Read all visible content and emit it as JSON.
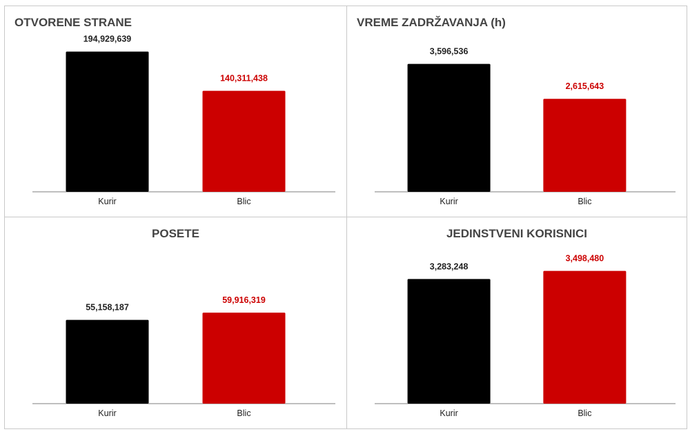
{
  "colors": {
    "kurir": "#000000",
    "blic": "#cc0000"
  },
  "chart_data": [
    {
      "type": "bar",
      "title": "OTVORENE STRANE",
      "categories": [
        "Kurir",
        "Blic"
      ],
      "values": [
        194929639,
        140311438
      ],
      "value_labels": [
        "194,929,639",
        "140,311,438"
      ],
      "bar_colors": [
        "#000000",
        "#cc0000"
      ],
      "ylim": [
        0,
        210000000
      ],
      "title_align": "left",
      "grid": false,
      "legend": "none"
    },
    {
      "type": "bar",
      "title": "VREME ZADRŽAVANJA (h)",
      "categories": [
        "Kurir",
        "Blic"
      ],
      "values": [
        3596536,
        2615643
      ],
      "value_labels": [
        "3,596,536",
        "2,615,643"
      ],
      "bar_colors": [
        "#000000",
        "#cc0000"
      ],
      "ylim": [
        0,
        4250000
      ],
      "title_align": "left",
      "grid": false,
      "legend": "none"
    },
    {
      "type": "bar",
      "title": "POSETE",
      "categories": [
        "Kurir",
        "Blic"
      ],
      "values": [
        55158187,
        59916319
      ],
      "value_labels": [
        "55,158,187",
        "59,916,319"
      ],
      "bar_colors": [
        "#000000",
        "#cc0000"
      ],
      "ylim": [
        0,
        100000000
      ],
      "title_align": "center",
      "grid": false,
      "legend": "none"
    },
    {
      "type": "bar",
      "title": "JEDINSTVENI KORISNICI",
      "categories": [
        "Kurir",
        "Blic"
      ],
      "values": [
        3283248,
        3498480
      ],
      "value_labels": [
        "3,283,248",
        "3,498,480"
      ],
      "bar_colors": [
        "#000000",
        "#cc0000"
      ],
      "ylim": [
        0,
        4000000
      ],
      "title_align": "center",
      "grid": false,
      "legend": "none"
    }
  ]
}
